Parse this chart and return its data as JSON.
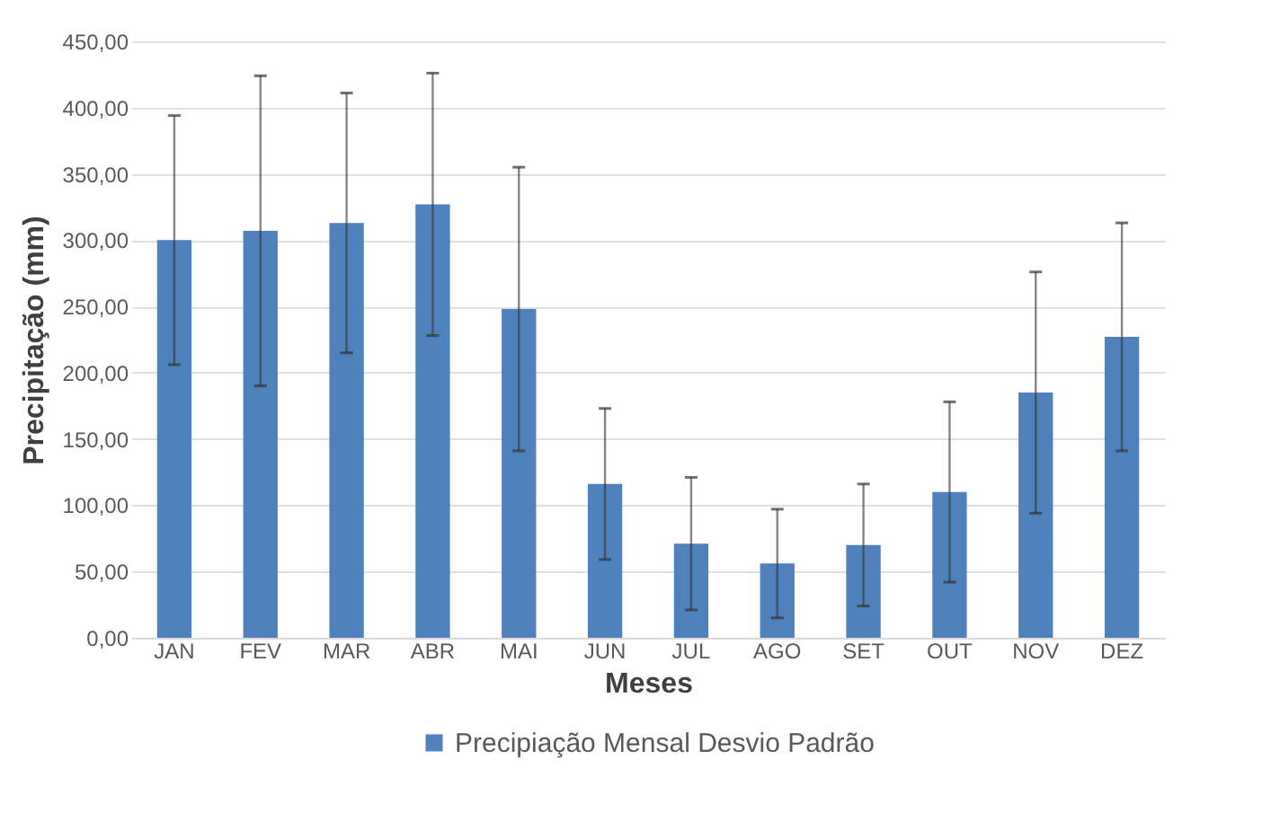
{
  "chart_data": {
    "type": "bar",
    "xlabel": "Meses",
    "ylabel": "Precipitação (mm)",
    "categories": [
      "JAN",
      "FEV",
      "MAR",
      "ABR",
      "MAI",
      "JUN",
      "JUL",
      "AGO",
      "SET",
      "OUT",
      "NOV",
      "DEZ"
    ],
    "series": [
      {
        "name": "Precipiação Mensal Desvio Padrão",
        "color": "#4f81bd",
        "values": [
          300,
          307,
          313,
          327,
          248,
          116,
          71,
          56,
          70,
          110,
          185,
          227
        ],
        "errors": [
          94,
          117,
          98,
          99,
          107,
          57,
          50,
          41,
          46,
          68,
          91,
          86
        ]
      }
    ],
    "ylim": [
      0,
      450
    ],
    "yticks": [
      {
        "value": 0,
        "label": "0,00"
      },
      {
        "value": 50,
        "label": "50,00"
      },
      {
        "value": 100,
        "label": "100,00"
      },
      {
        "value": 150,
        "label": "150,00"
      },
      {
        "value": 200,
        "label": "200,00"
      },
      {
        "value": 250,
        "label": "250,00"
      },
      {
        "value": 300,
        "label": "300,00"
      },
      {
        "value": 350,
        "label": "350,00"
      },
      {
        "value": 400,
        "label": "400,00"
      },
      {
        "value": 450,
        "label": "450,00"
      }
    ],
    "grid": "y",
    "legend": "bottom"
  }
}
